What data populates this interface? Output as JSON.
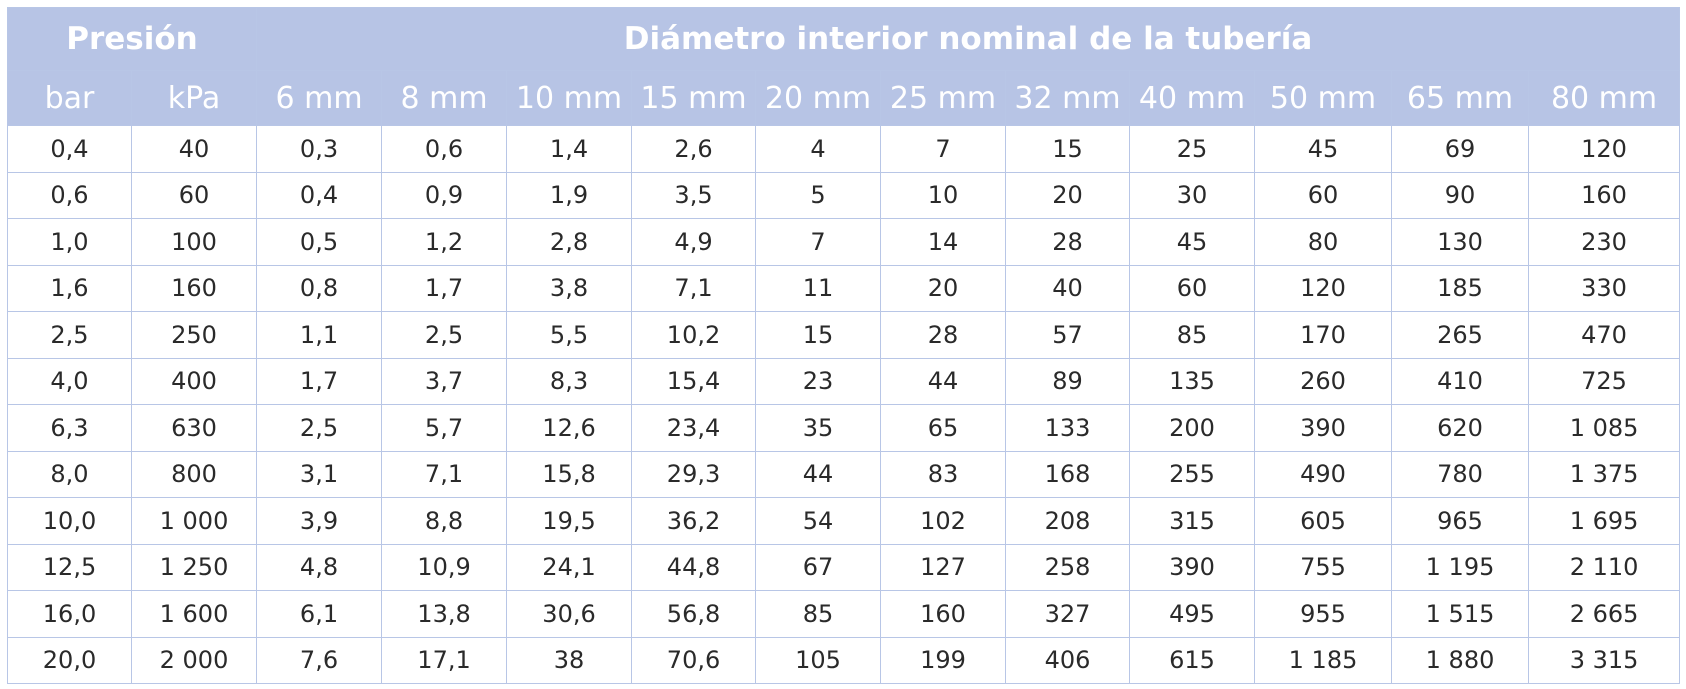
{
  "header": {
    "group_titles": [
      "Presión",
      "Diámetro interior nominal de la tubería"
    ],
    "columns": [
      "bar",
      "kPa",
      "6 mm",
      "8 mm",
      "10 mm",
      "15 mm",
      "20 mm",
      "25 mm",
      "32 mm",
      "40 mm",
      "50 mm",
      "65 mm",
      "80 mm"
    ]
  },
  "table": {
    "rows": [
      [
        "0,4",
        "40",
        "0,3",
        "0,6",
        "1,4",
        "2,6",
        "4",
        "7",
        "15",
        "25",
        "45",
        "69",
        "120"
      ],
      [
        "0,6",
        "60",
        "0,4",
        "0,9",
        "1,9",
        "3,5",
        "5",
        "10",
        "20",
        "30",
        "60",
        "90",
        "160"
      ],
      [
        "1,0",
        "100",
        "0,5",
        "1,2",
        "2,8",
        "4,9",
        "7",
        "14",
        "28",
        "45",
        "80",
        "130",
        "230"
      ],
      [
        "1,6",
        "160",
        "0,8",
        "1,7",
        "3,8",
        "7,1",
        "11",
        "20",
        "40",
        "60",
        "120",
        "185",
        "330"
      ],
      [
        "2,5",
        "250",
        "1,1",
        "2,5",
        "5,5",
        "10,2",
        "15",
        "28",
        "57",
        "85",
        "170",
        "265",
        "470"
      ],
      [
        "4,0",
        "400",
        "1,7",
        "3,7",
        "8,3",
        "15,4",
        "23",
        "44",
        "89",
        "135",
        "260",
        "410",
        "725"
      ],
      [
        "6,3",
        "630",
        "2,5",
        "5,7",
        "12,6",
        "23,4",
        "35",
        "65",
        "133",
        "200",
        "390",
        "620",
        "1 085"
      ],
      [
        "8,0",
        "800",
        "3,1",
        "7,1",
        "15,8",
        "29,3",
        "44",
        "83",
        "168",
        "255",
        "490",
        "780",
        "1 375"
      ],
      [
        "10,0",
        "1 000",
        "3,9",
        "8,8",
        "19,5",
        "36,2",
        "54",
        "102",
        "208",
        "315",
        "605",
        "965",
        "1 695"
      ],
      [
        "12,5",
        "1 250",
        "4,8",
        "10,9",
        "24,1",
        "44,8",
        "67",
        "127",
        "258",
        "390",
        "755",
        "1 195",
        "2 110"
      ],
      [
        "16,0",
        "1 600",
        "6,1",
        "13,8",
        "30,6",
        "56,8",
        "85",
        "160",
        "327",
        "495",
        "955",
        "1 515",
        "2 665"
      ],
      [
        "20,0",
        "2 000",
        "7,6",
        "17,1",
        "38",
        "70,6",
        "105",
        "199",
        "406",
        "615",
        "1 185",
        "1 880",
        "3 315"
      ]
    ]
  }
}
